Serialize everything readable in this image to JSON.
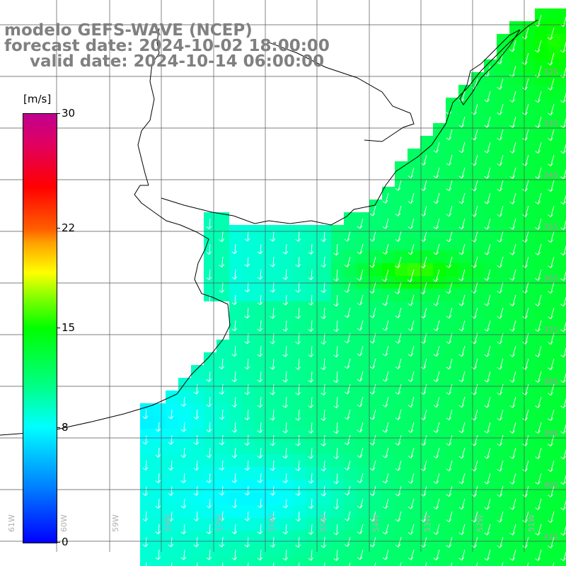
{
  "title": {
    "line1": "modelo GEFS-WAVE (NCEP)",
    "line2": "forecast date: 2024-10-02 18:00:00",
    "line3": "valid date: 2024-10-14 06:00:00"
  },
  "colorbar": {
    "units": "[m/s]",
    "labels": [
      "30",
      "22",
      "15",
      "8",
      "0"
    ],
    "values": [
      30,
      22,
      15,
      8,
      0
    ]
  },
  "lat_labels": [
    "32S",
    "33S",
    "34S",
    "35S",
    "36S",
    "37S",
    "38S",
    "39S",
    "40S",
    "41S"
  ],
  "lon_labels": [
    "61W",
    "60W",
    "59W",
    "58W",
    "57W",
    "56W",
    "55W",
    "54W",
    "53W",
    "52W",
    "51W"
  ],
  "colors": {
    "land": "#ffffff",
    "grid": "#555555",
    "coast": "#000000",
    "arrow": "#ffffff",
    "title": "#808080"
  }
}
